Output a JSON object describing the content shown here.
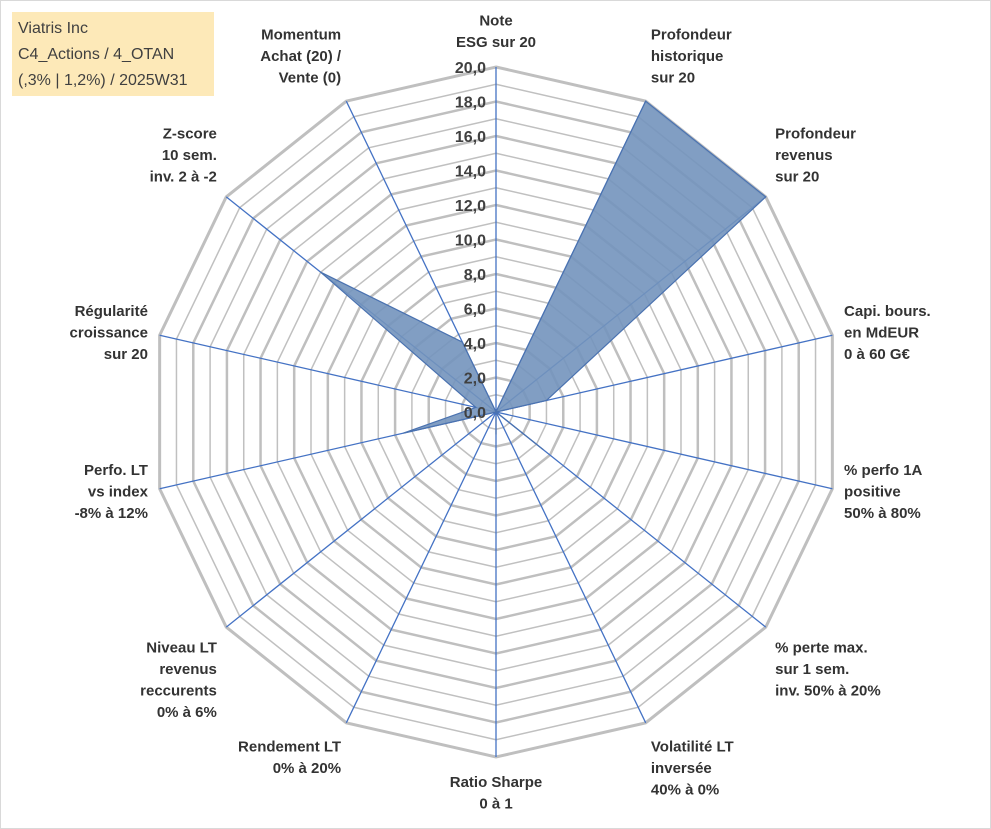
{
  "chart_data": {
    "type": "radar",
    "title_lines": [
      "Viatris Inc",
      "C4_Actions / 4_OTAN",
      "(,3% | 1,2%) / 2025W31"
    ],
    "r_ticks": [
      "0,0",
      "2,0",
      "4,0",
      "6,0",
      "8,0",
      "10,0",
      "12,0",
      "14,0",
      "16,0",
      "18,0",
      "20,0"
    ],
    "rlim": [
      0,
      20
    ],
    "axes": [
      {
        "label": [
          "Note",
          "ESG sur 20"
        ],
        "value": 0
      },
      {
        "label": [
          "Profondeur",
          "historique",
          "sur 20"
        ],
        "value": 20
      },
      {
        "label": [
          "Profondeur",
          "revenus",
          "sur 20"
        ],
        "value": 20
      },
      {
        "label": [
          "Capi. bours.",
          "en MdEUR",
          "0 à 60 G€"
        ],
        "value": 3
      },
      {
        "label": [
          "% perfo 1A",
          "positive",
          "50% à 80%"
        ],
        "value": 0
      },
      {
        "label": [
          "% perte max.",
          "sur 1 sem.",
          "inv. 50% à 20%"
        ],
        "value": 3.5
      },
      {
        "label": [
          "Volatilité LT",
          "inversée",
          "40% à 0%"
        ],
        "value": 0
      },
      {
        "label": [
          "Ratio Sharpe",
          "0 à 1"
        ],
        "value": 1.3
      },
      {
        "label": [
          "Rendement LT",
          "0% à 20%"
        ],
        "value": 0
      },
      {
        "label": [
          "Niveau LT",
          "revenus",
          "reccurents",
          "0% à 6%"
        ],
        "value": 0
      },
      {
        "label": [
          "Perfo. LT",
          "vs index",
          "-8% à 12%"
        ],
        "value": 5.5
      },
      {
        "label": [
          "Régularité",
          "croissance",
          "sur 20"
        ],
        "value": 1.2
      },
      {
        "label": [
          "Z-score",
          "10 sem.",
          "inv. 2 à -2"
        ],
        "value": 13
      },
      {
        "label": [
          "Momentum",
          "Achat (20) /",
          "Vente (0)"
        ],
        "value": 4.5
      }
    ],
    "colors": {
      "fill": "#7393bd",
      "stroke": "#4a72b0",
      "spoke": "#4472c4",
      "grid": "#c0c0c0",
      "grid_outer": "#bfbfbf"
    }
  }
}
